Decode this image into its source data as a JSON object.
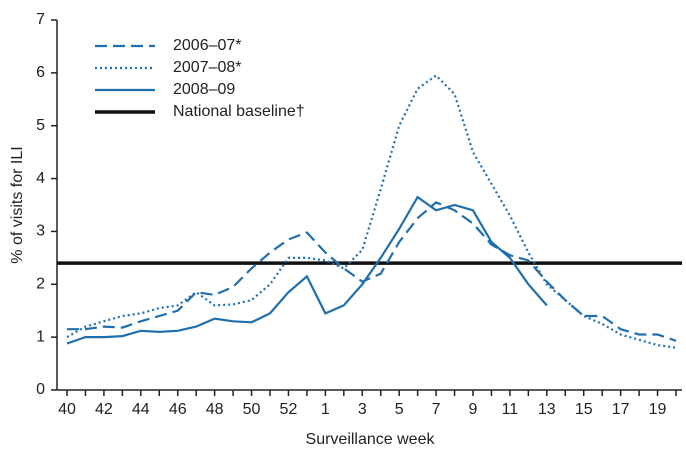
{
  "chart_data": {
    "type": "line",
    "y_label": "% of visits for ILI",
    "x_label": "Surveillance week",
    "categories": [
      "40",
      null,
      "42",
      null,
      "44",
      null,
      "46",
      null,
      "48",
      null,
      "50",
      null,
      "52",
      null,
      "1",
      null,
      "3",
      null,
      "5",
      null,
      "7",
      null,
      "9",
      null,
      "11",
      null,
      "13",
      null,
      "15",
      null,
      "17",
      null,
      "19",
      null
    ],
    "ylim": [
      0,
      7
    ],
    "yticks": [
      0,
      1,
      2,
      3,
      4,
      5,
      6,
      7
    ],
    "legend": "upper left",
    "series": [
      {
        "name": "2006–07*",
        "color": "#1f6fae",
        "style": "dashed",
        "values": [
          1.15,
          1.15,
          1.2,
          1.18,
          1.3,
          1.4,
          1.5,
          1.85,
          1.8,
          1.95,
          2.3,
          2.6,
          2.85,
          2.98,
          2.6,
          2.3,
          2.05,
          2.2,
          2.8,
          3.25,
          3.55,
          3.4,
          3.15,
          2.75,
          2.55,
          2.45,
          2.05,
          1.7,
          1.4,
          1.4,
          1.15,
          1.05,
          1.05,
          0.93
        ]
      },
      {
        "name": "2007–08*",
        "color": "#1f6fae",
        "style": "dotted",
        "values": [
          1.0,
          1.2,
          1.3,
          1.4,
          1.45,
          1.55,
          1.6,
          1.85,
          1.6,
          1.62,
          1.7,
          2.0,
          2.5,
          2.5,
          2.45,
          2.3,
          2.65,
          3.8,
          5.0,
          5.7,
          5.95,
          5.6,
          4.5,
          3.9,
          3.3,
          2.6,
          2.0,
          1.7,
          1.4,
          1.25,
          1.05,
          0.95,
          0.85,
          0.8
        ]
      },
      {
        "name": "2008–09",
        "color": "#1f6fae",
        "style": "solid",
        "values": [
          0.88,
          1.0,
          1.0,
          1.02,
          1.12,
          1.1,
          1.12,
          1.2,
          1.35,
          1.3,
          1.28,
          1.45,
          1.85,
          2.15,
          1.45,
          1.6,
          2.0,
          2.5,
          3.05,
          3.65,
          3.4,
          3.5,
          3.4,
          2.8,
          2.5,
          2.0,
          1.6,
          null,
          null,
          null,
          null,
          null,
          null,
          null
        ]
      }
    ],
    "baseline": {
      "name": "National baseline†",
      "value": 2.4,
      "color": "#111111"
    }
  }
}
